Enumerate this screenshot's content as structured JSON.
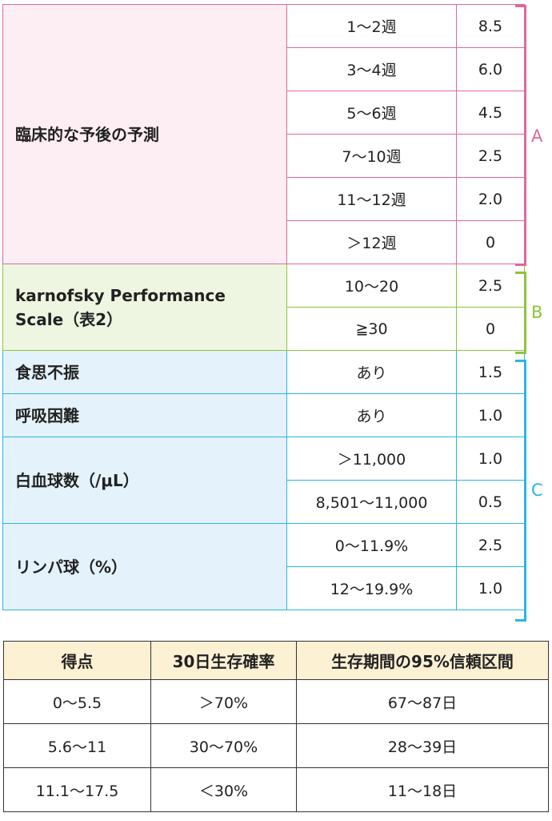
{
  "groups": [
    {
      "id": "A",
      "label": "臨床的な予後の予測",
      "rows": [
        {
          "range": "1〜2週",
          "points": "8.5"
        },
        {
          "range": "3〜4週",
          "points": "6.0"
        },
        {
          "range": "5〜6週",
          "points": "4.5"
        },
        {
          "range": "7〜10週",
          "points": "2.5"
        },
        {
          "range": "11〜12週",
          "points": "2.0"
        },
        {
          "range": "＞12週",
          "points": "0"
        }
      ],
      "color": "#e0679c"
    },
    {
      "id": "B",
      "label_line1": "karnofsky Performance",
      "label_line2": "Scale（表2）",
      "rows": [
        {
          "range": "10〜20",
          "points": "2.5"
        },
        {
          "range": "≧30",
          "points": "0"
        }
      ],
      "color": "#8cc43d"
    },
    {
      "id": "C",
      "items": [
        {
          "label": "食思不振",
          "rows": [
            {
              "range": "あり",
              "points": "1.5"
            }
          ]
        },
        {
          "label": "呼吸困難",
          "rows": [
            {
              "range": "あり",
              "points": "1.0"
            }
          ]
        },
        {
          "label": "白血球数（/μL）",
          "rows": [
            {
              "range": "＞11,000",
              "points": "1.0"
            },
            {
              "range": "8,501〜11,000",
              "points": "0.5"
            }
          ]
        },
        {
          "label": "リンパ球（%）",
          "rows": [
            {
              "range": "0〜11.9%",
              "points": "2.5"
            },
            {
              "range": "12〜19.9%",
              "points": "1.0"
            }
          ]
        }
      ],
      "color": "#29b6e6"
    }
  ],
  "score_table": {
    "headers": [
      "得点",
      "30日生存確率",
      "生存期間の95%信頼区間"
    ],
    "rows": [
      [
        "0〜5.5",
        "＞70%",
        "67〜87日"
      ],
      [
        "5.6〜11",
        "30〜70%",
        "28〜39日"
      ],
      [
        "11.1〜17.5",
        "＜30%",
        "11〜18日"
      ]
    ],
    "header_bg": "#fdf1d4"
  }
}
